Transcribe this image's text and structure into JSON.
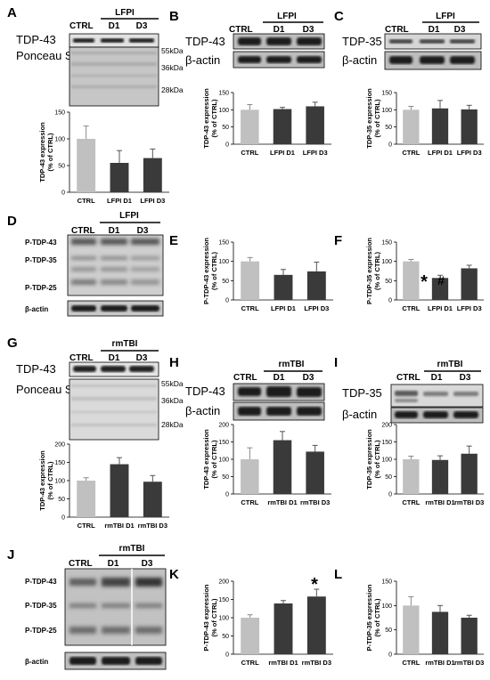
{
  "panels": {
    "A": {
      "label": "A",
      "ctrl": "CTRL",
      "group": "LFPI",
      "d1": "D1",
      "d3": "D3",
      "protein": "TDP-43",
      "load": "Ponceau S",
      "mw": [
        "55kDa",
        "36kDa",
        "28kDa"
      ]
    },
    "B": {
      "label": "B",
      "ctrl": "CTRL",
      "group": "LFPI",
      "d1": "D1",
      "d3": "D3",
      "protein": "TDP-43",
      "load": "β-actin"
    },
    "C": {
      "label": "C",
      "ctrl": "CTRL",
      "group": "LFPI",
      "d1": "D1",
      "d3": "D3",
      "protein": "TDP-35",
      "load": "β-actin"
    },
    "D": {
      "label": "D",
      "ctrl": "CTRL",
      "group": "LFPI",
      "d1": "D1",
      "d3": "D3",
      "p43": "P-TDP-43",
      "p35": "P-TDP-35",
      "p25": "P-TDP-25",
      "load": "β-actin"
    },
    "E": {
      "label": "E"
    },
    "F": {
      "label": "F",
      "sig_star": "*",
      "sig_hash": "#"
    },
    "G": {
      "label": "G",
      "ctrl": "CTRL",
      "group": "rmTBI",
      "d1": "D1",
      "d3": "D3",
      "protein": "TDP-43",
      "load": "Ponceau S",
      "mw": [
        "55kDa",
        "36kDa",
        "28kDa"
      ]
    },
    "H": {
      "label": "H",
      "ctrl": "CTRL",
      "group": "rmTBI",
      "d1": "D1",
      "d3": "D3",
      "protein": "TDP-43",
      "load": "β-actin"
    },
    "I": {
      "label": "I",
      "ctrl": "CTRL",
      "group": "rmTBI",
      "d1": "D1",
      "d3": "D3",
      "protein": "TDP-35",
      "load": "β-actin"
    },
    "J": {
      "label": "J",
      "ctrl": "CTRL",
      "group": "rmTBI",
      "d1": "D1",
      "d3": "D3",
      "p43": "P-TDP-43",
      "p35": "P-TDP-35",
      "p25": "P-TDP-25",
      "load": "β-actin"
    },
    "K": {
      "label": "K",
      "sig_star": "*"
    },
    "L": {
      "label": "L"
    }
  },
  "colors": {
    "ctrl_bar": "#c0c0c0",
    "treat_bar": "#3a3a3a",
    "blot_bg": "#d4d4d4",
    "band": "#202020"
  },
  "chart_data": [
    {
      "id": "A",
      "type": "bar",
      "ylabel": "TDP-43 expression\n(% of CTRL)",
      "ylim": [
        0,
        150
      ],
      "yticks": [
        0,
        50,
        100,
        150
      ],
      "categories": [
        "CTRL",
        "LFPI D1",
        "LFPI D3"
      ],
      "values": [
        100,
        55,
        64
      ],
      "errors": [
        24,
        23,
        17
      ]
    },
    {
      "id": "B",
      "type": "bar",
      "ylabel": "TDP-43 expression\n(% of CTRL)",
      "ylim": [
        0,
        150
      ],
      "yticks": [
        0,
        50,
        100,
        150
      ],
      "categories": [
        "CTRL",
        "LFPI D1",
        "LFPI D3"
      ],
      "values": [
        100,
        102,
        110
      ],
      "errors": [
        15,
        5,
        12
      ]
    },
    {
      "id": "C",
      "type": "bar",
      "ylabel": "TDP-35 expression\n(% of CTRL)",
      "ylim": [
        0,
        150
      ],
      "yticks": [
        0,
        50,
        100,
        150
      ],
      "categories": [
        "CTRL",
        "LFPI D1",
        "LFPI D3"
      ],
      "values": [
        100,
        104,
        101
      ],
      "errors": [
        10,
        23,
        12
      ]
    },
    {
      "id": "E",
      "type": "bar",
      "ylabel": "P-TDP-43 expression\n(% of CTRL)",
      "ylim": [
        0,
        150
      ],
      "yticks": [
        0,
        50,
        100,
        150
      ],
      "categories": [
        "CTRL",
        "LFPI D1",
        "LFPI D3"
      ],
      "values": [
        100,
        65,
        74
      ],
      "errors": [
        10,
        14,
        24
      ]
    },
    {
      "id": "F",
      "type": "bar",
      "ylabel": "P-TDP-35 expression\n(% of CTRL)",
      "ylim": [
        0,
        150
      ],
      "yticks": [
        0,
        50,
        100,
        150
      ],
      "categories": [
        "CTRL",
        "LFPI D1",
        "LFPI D3"
      ],
      "values": [
        100,
        57,
        82
      ],
      "errors": [
        5,
        7,
        8
      ]
    },
    {
      "id": "G",
      "type": "bar",
      "ylabel": "TDP-43 expression\n(% of CTRL)",
      "ylim": [
        0,
        200
      ],
      "yticks": [
        0,
        50,
        100,
        150,
        200
      ],
      "categories": [
        "CTRL",
        "rmTBI D1",
        "rmTBI D3"
      ],
      "values": [
        100,
        145,
        97
      ],
      "errors": [
        8,
        18,
        17
      ]
    },
    {
      "id": "H",
      "type": "bar",
      "ylabel": "TDP-43 expression\n(% of CTRL)",
      "ylim": [
        0,
        200
      ],
      "yticks": [
        0,
        50,
        100,
        150,
        200
      ],
      "categories": [
        "CTRL",
        "rmTBI D1",
        "rmTBI D3"
      ],
      "values": [
        100,
        155,
        122
      ],
      "errors": [
        33,
        25,
        18
      ]
    },
    {
      "id": "I",
      "type": "bar",
      "ylabel": "TDP-35 expression\n(% of CTRL)",
      "ylim": [
        0,
        200
      ],
      "yticks": [
        0,
        50,
        100,
        150,
        200
      ],
      "categories": [
        "CTRL",
        "rmTBI D1",
        "rmTBI D3"
      ],
      "values": [
        100,
        98,
        116
      ],
      "errors": [
        9,
        12,
        22
      ]
    },
    {
      "id": "K",
      "type": "bar",
      "ylabel": "P-TDP-43 expression\n(% of CTRL)",
      "ylim": [
        0,
        200
      ],
      "yticks": [
        0,
        50,
        100,
        150,
        200
      ],
      "categories": [
        "CTRL",
        "rmTBI D1",
        "rmTBI D3"
      ],
      "values": [
        100,
        139,
        158
      ],
      "errors": [
        8,
        8,
        20
      ]
    },
    {
      "id": "L",
      "type": "bar",
      "ylabel": "P-TDP-35 expression\n(% of CTRL)",
      "ylim": [
        0,
        150
      ],
      "yticks": [
        0,
        50,
        100,
        150
      ],
      "categories": [
        "CTRL",
        "rmTBI D1",
        "rmTBI D3"
      ],
      "values": [
        100,
        87,
        75
      ],
      "errors": [
        18,
        13,
        5
      ]
    }
  ]
}
